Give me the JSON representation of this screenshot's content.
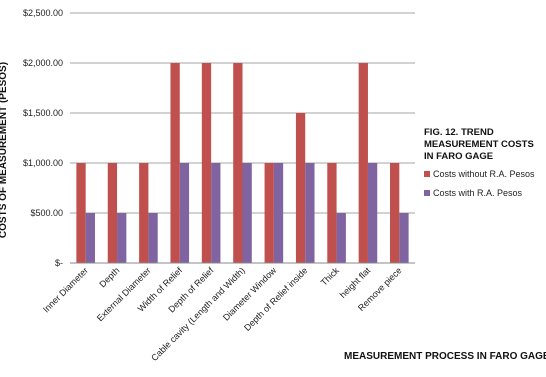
{
  "chart_data": {
    "type": "bar",
    "title_lines": [
      "FIG. 12. TREND",
      "MEASUREMENT  COSTS",
      "IN  FARO GAGE"
    ],
    "xlabel": "MEASUREMENT  PROCESS IN FARO GAGE",
    "ylabel": "COSTS OF MEASUREMENT (PESOS)",
    "ylim": [
      0,
      2500
    ],
    "yticks": [
      0,
      500,
      1000,
      1500,
      2000,
      2500
    ],
    "ytick_labels": [
      "$-",
      "$500.00",
      "$1,000.00",
      "$1,500.00",
      "$2,000.00",
      "$2,500.00"
    ],
    "grid": true,
    "legend_position": "right",
    "categories": [
      "Inner Diameter",
      "Depth",
      "External Diameter",
      "Width of Relief",
      "Depth of Relief",
      "Cable cavity (Length and Width)",
      "Diameter Window",
      "Depth of Relief inside",
      "Thick",
      "height flat",
      "Remove piece"
    ],
    "series": [
      {
        "name": "Costs without R.A. Pesos",
        "color": "#c0504d",
        "values": [
          1000,
          1000,
          1000,
          2000,
          2000,
          2000,
          1000,
          1500,
          1000,
          2000,
          1000
        ]
      },
      {
        "name": "Costs with R.A. Pesos",
        "color": "#8064a2",
        "values": [
          500,
          500,
          500,
          1000,
          1000,
          1000,
          1000,
          1000,
          500,
          1000,
          500
        ]
      }
    ]
  }
}
